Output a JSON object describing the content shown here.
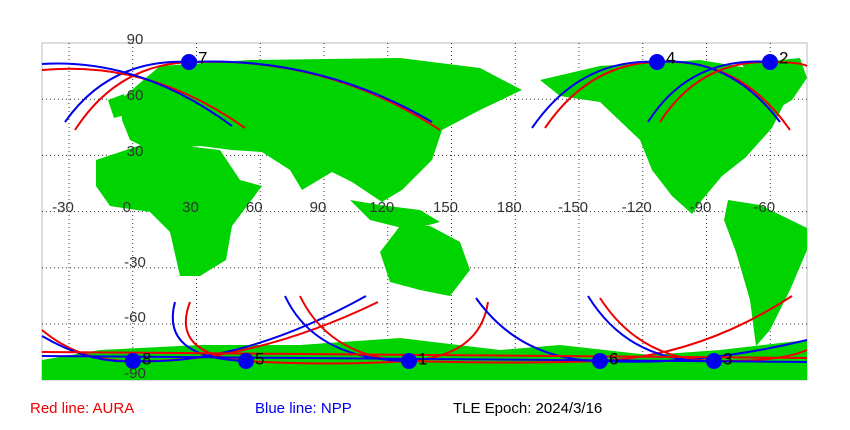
{
  "map": {
    "lat_labels": [
      "90",
      "60",
      "30",
      "-30",
      "-60",
      "-90"
    ],
    "lon_labels": [
      "-30",
      "0",
      "30",
      "60",
      "90",
      "120",
      "150",
      "180",
      "-150",
      "-120",
      "-90",
      "-60"
    ],
    "markers": [
      "7",
      "4",
      "2",
      "8",
      "5",
      "1",
      "6",
      "3"
    ]
  },
  "legend": {
    "red": "Red line: AURA",
    "blue": "Blue line: NPP",
    "epoch": "TLE Epoch: 2024/3/16"
  }
}
